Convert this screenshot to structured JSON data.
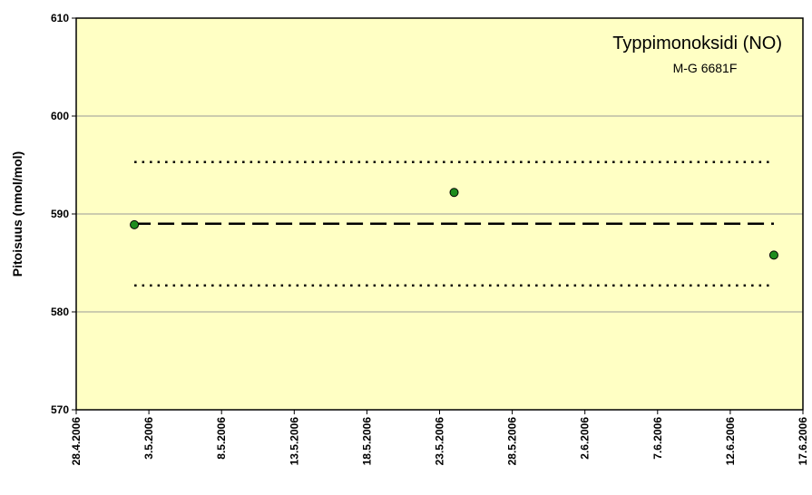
{
  "chart_data": {
    "type": "scatter",
    "title": "Typpimonoksidi (NO)",
    "subtitle": "M-G 6681F",
    "y_label": "Pitoisuus (nmol/mol)",
    "xlim": [
      "28.4.2006",
      "17.6.2006"
    ],
    "xticks": [
      "28.4.2006",
      "3.5.2006",
      "8.5.2006",
      "13.5.2006",
      "18.5.2006",
      "23.5.2006",
      "28.5.2006",
      "2.6.2006",
      "7.6.2006",
      "12.6.2006",
      "17.6.2006"
    ],
    "ylim": [
      570,
      610
    ],
    "yticks": [
      570,
      580,
      590,
      600,
      610
    ],
    "grid": true,
    "plot_background": "#ffffc4",
    "series": [
      {
        "kind": "points",
        "color": "#1e8c1e",
        "x": [
          "2.5.2006",
          "24.5.2006",
          "15.6.2006"
        ],
        "values": [
          588.9,
          592.2,
          585.8
        ]
      },
      {
        "kind": "line",
        "style": "dashed",
        "color": "#000000",
        "x": [
          "2.5.2006",
          "15.6.2006"
        ],
        "values": [
          589.0,
          589.0
        ]
      },
      {
        "kind": "line",
        "style": "dotted",
        "color": "#000000",
        "x": [
          "2.5.2006",
          "15.6.2006"
        ],
        "values": [
          595.3,
          595.3
        ]
      },
      {
        "kind": "line",
        "style": "dotted",
        "color": "#000000",
        "x": [
          "2.5.2006",
          "15.6.2006"
        ],
        "values": [
          582.7,
          582.7
        ]
      }
    ]
  }
}
